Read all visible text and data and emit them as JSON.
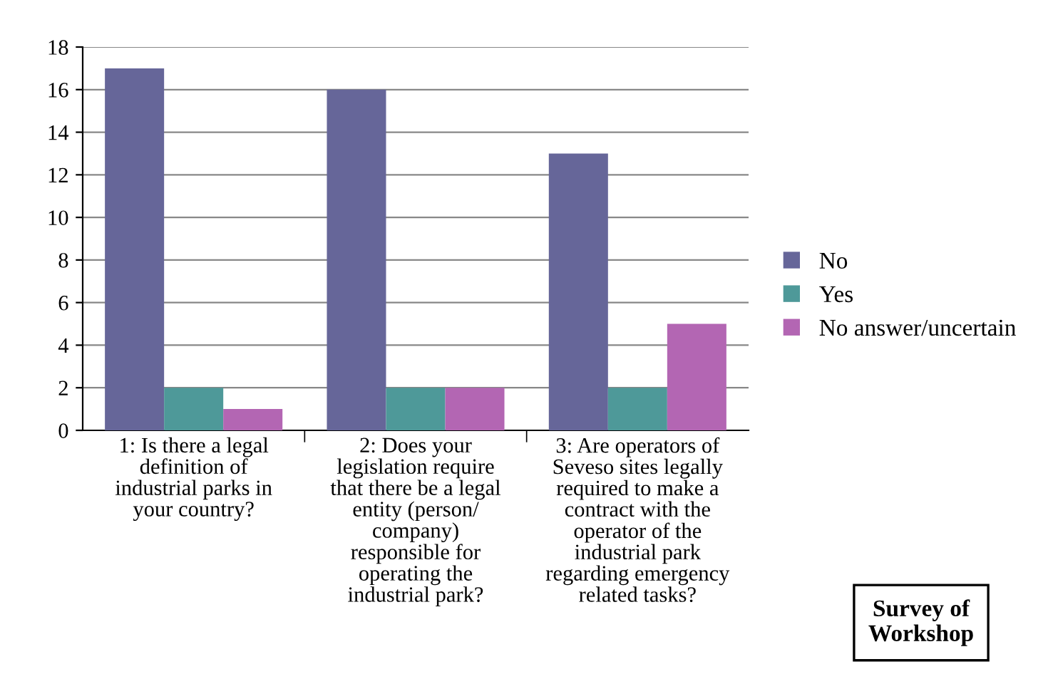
{
  "chart_data": {
    "type": "bar",
    "categories": [
      "1: Is there a legal\ndefinition of\nindustrial parks in\nyour country?",
      "2: Does your\nlegislation require\nthat there be a legal\nentity (person/\ncompany)\nresponsible for\noperating the\nindustrial park?",
      "3: Are operators of\nSeveso sites legally\nrequired to make a\ncontract with the\noperator of the\nindustrial park\nregarding emergency\nrelated tasks?"
    ],
    "series": [
      {
        "name": "No",
        "color": "#666699",
        "values": [
          17,
          16,
          13
        ]
      },
      {
        "name": "Yes",
        "color": "#4e9999",
        "values": [
          2,
          2,
          2
        ]
      },
      {
        "name": "No answer/uncertain",
        "color": "#b366b3",
        "values": [
          1,
          2,
          5
        ]
      }
    ],
    "ylim": [
      0,
      18
    ],
    "yticks": [
      0,
      2,
      4,
      6,
      8,
      10,
      12,
      14,
      16,
      18
    ],
    "grid": "y",
    "legend": "right",
    "annotations": [
      "Survey of\nWorkshop"
    ]
  }
}
